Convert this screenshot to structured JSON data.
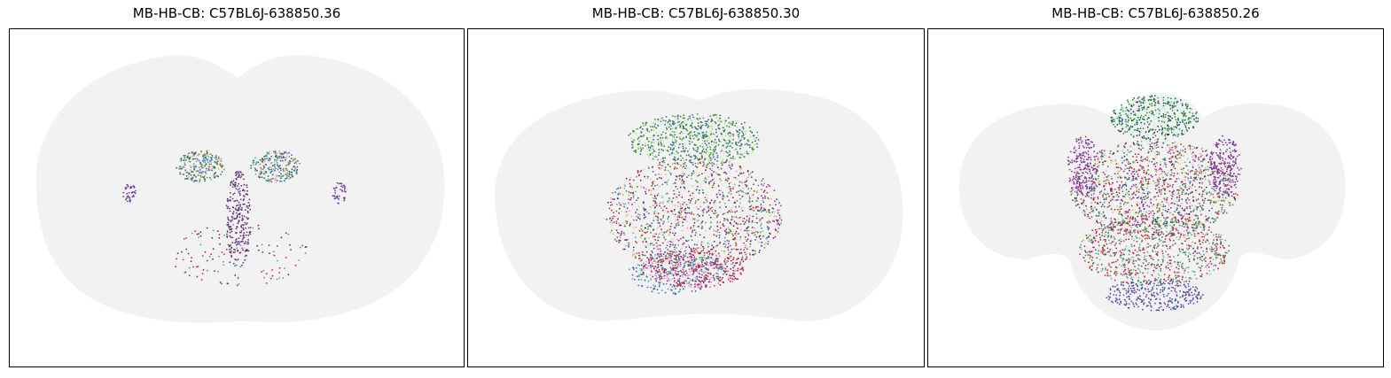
{
  "figure": {
    "panels": [
      {
        "title": "MB-HB-CB: C57BL6J-638850.36"
      },
      {
        "title": "MB-HB-CB: C57BL6J-638850.30"
      },
      {
        "title": "MB-HB-CB: C57BL6J-638850.26"
      }
    ]
  },
  "colors": {
    "background_tissue": "#f2f2f2",
    "axes_frame": "#000000",
    "cell_palette": [
      "#3a5fb0",
      "#2c7a2c",
      "#5e2d6e",
      "#e31a1c",
      "#4aa3a3",
      "#8a1f4a",
      "#6a3d9a",
      "#33a02c",
      "#b2df8a",
      "#ff7fe0",
      "#b15928",
      "#1f3a6e",
      "#9e2fa0",
      "#f4a582",
      "#ffff99",
      "#b8f5e8",
      "#7fbf7f",
      "#c51b7d"
    ]
  }
}
